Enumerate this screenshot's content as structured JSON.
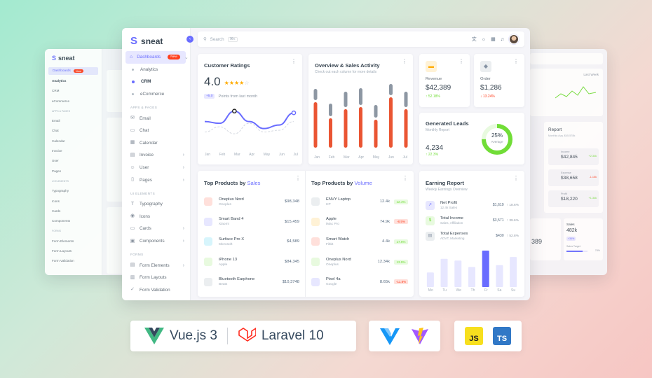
{
  "brand": {
    "name": "sneat"
  },
  "nav": {
    "dashboards": "Dashboards",
    "dashboards_badge": "New",
    "analytics": "Analytics",
    "crm": "CRM",
    "ecommerce": "eCommerce",
    "apps_header": "APPS & PAGES",
    "email": "Email",
    "chat": "Chat",
    "calendar": "Calendar",
    "invoice": "Invoice",
    "user": "User",
    "pages": "Pages",
    "ui_header": "UI ELEMENTS",
    "typography": "Typography",
    "icons": "Icons",
    "cards": "Cards",
    "components": "Components",
    "forms_header": "FORMS",
    "form_elements": "Form Elements",
    "form_layouts": "Form Layouts",
    "form_validation": "Form Validation"
  },
  "topbar": {
    "search_placeholder": "Search",
    "search_kbd": "⌘K"
  },
  "ratings": {
    "title": "Customer Ratings",
    "value": "4.0",
    "pill": "+5.0",
    "pill_text": "Points from last month",
    "months": [
      "Jan",
      "Feb",
      "Mar",
      "Apr",
      "May",
      "Jun",
      "Jul"
    ],
    "series_main": [
      30,
      28,
      42,
      30,
      22,
      26,
      40
    ],
    "series_dashed": [
      18,
      24,
      16,
      28,
      18,
      20,
      30
    ]
  },
  "overview": {
    "title": "Overview & Sales Activity",
    "subtitle": "Check out each column for more details",
    "months": [
      "Jan",
      "Feb",
      "Mar",
      "Apr",
      "May",
      "Jun",
      "Jul"
    ],
    "orange": [
      65,
      42,
      55,
      58,
      40,
      72,
      55
    ],
    "gray": [
      16,
      18,
      22,
      24,
      18,
      16,
      22
    ]
  },
  "revenue": {
    "label": "Revenue",
    "value": "$42,389",
    "change": "↑ 52.18%"
  },
  "order": {
    "label": "Order",
    "value": "$1,286",
    "change": "↓ 13.24%"
  },
  "leads": {
    "title": "Generated Leads",
    "subtitle": "Monthly Report",
    "value": "4,234",
    "change": "↑ 22.3%",
    "pct": "25%",
    "pct_label": "Average",
    "fraction": 0.25
  },
  "products_sales": {
    "title": "Top Products by ",
    "title_hl": "Sales",
    "rows": [
      {
        "name": "Oneplus Nord",
        "brand": "Oneplus",
        "value": "$98,348",
        "color": "#ffe0db"
      },
      {
        "name": "Smart Band 4",
        "brand": "Xiaomi",
        "value": "$15,459",
        "color": "#e7e7ff"
      },
      {
        "name": "Surface Pro X",
        "brand": "Microsoft",
        "value": "$4,589",
        "color": "#d7f5fc"
      },
      {
        "name": "iPhone 13",
        "brand": "Apple",
        "value": "$84,345",
        "color": "#e8fadf"
      },
      {
        "name": "Bluetooth Earphone",
        "brand": "Beats",
        "value": "$10,3748",
        "color": "#ebeef0"
      }
    ]
  },
  "products_volume": {
    "title": "Top Products by ",
    "title_hl": "Volume",
    "rows": [
      {
        "name": "ENVY Laptop",
        "brand": "HP",
        "value": "12.4k",
        "tag": "12.4%",
        "tc": "g",
        "color": "#ebeef0"
      },
      {
        "name": "Apple",
        "brand": "iMac Pro",
        "value": "74.9k",
        "tag": "-8.5%",
        "tc": "r",
        "color": "#fff2d6"
      },
      {
        "name": "Smart Watch",
        "brand": "Fitbit",
        "value": "4.4k",
        "tag": "17.6%",
        "tc": "g",
        "color": "#ffe0db"
      },
      {
        "name": "Oneplus Nord",
        "brand": "Oneplus",
        "value": "12.34k",
        "tag": "13.9%",
        "tc": "g",
        "color": "#e8fadf"
      },
      {
        "name": "Pixel 4a",
        "brand": "Google",
        "value": "8.65k",
        "tag": "-11.8%",
        "tc": "r",
        "color": "#e7e7ff"
      }
    ]
  },
  "earning": {
    "title": "Earning Report",
    "subtitle": "Weekly Earnings Overview",
    "rows": [
      {
        "name": "Net Profit",
        "sub": "12.4k Sales",
        "value": "$1,619",
        "change": "↑ 18.6%",
        "icbg": "#e7e7ff",
        "ic": "↗",
        "icc": "#696cff"
      },
      {
        "name": "Total Income",
        "sub": "Sales, Affiliation",
        "value": "$3,571",
        "change": "↑ 39.6%",
        "icbg": "#e8fadf",
        "ic": "$",
        "icc": "#71dd37"
      },
      {
        "name": "Total Expenses",
        "sub": "ADVT, Marketing",
        "value": "$430",
        "change": "↑ 52.8%",
        "icbg": "#ebeef0",
        "ic": "▤",
        "icc": "#8592a3"
      }
    ],
    "days": [
      "Mo",
      "Tu",
      "We",
      "Th",
      "Fr",
      "Sa",
      "Su"
    ],
    "bars": [
      32,
      62,
      58,
      44,
      80,
      48,
      66
    ]
  },
  "bg_left": {
    "brand": "sneat",
    "items": [
      "Dashboards",
      "Analytics",
      "CRM",
      "eCommerce",
      "APPS & PAGES",
      "Email",
      "Chat",
      "Calendar",
      "Invoice",
      "User",
      "Pages",
      "UI ELEMENTS",
      "Typography",
      "Icons",
      "Cards",
      "Components",
      "FORMS",
      "Form Elements",
      "Form Layouts",
      "Form Validation"
    ],
    "badge": "New"
  },
  "bg_right": {
    "last_week": "Last Week",
    "report": "Report",
    "report_sub": "Monthly Avg. $45.578k",
    "income": "Income",
    "income_val": "$42,845",
    "income_ch": "+2.34k",
    "expense": "Expense",
    "expense_val": "$38,658",
    "expense_ch": "-1.15k",
    "profit": "Profit",
    "profit_val": "$18,220",
    "profit_ch": "+1.34k",
    "sales": "Sales",
    "sales_val": "482k",
    "sales_pill": "+34%",
    "sales_target": "Sales Target",
    "sales_pct": "78%",
    "val_389": "389"
  },
  "logos": {
    "vue": "Vue.js 3",
    "laravel": "Laravel 10",
    "js": "JS",
    "ts": "TS"
  }
}
